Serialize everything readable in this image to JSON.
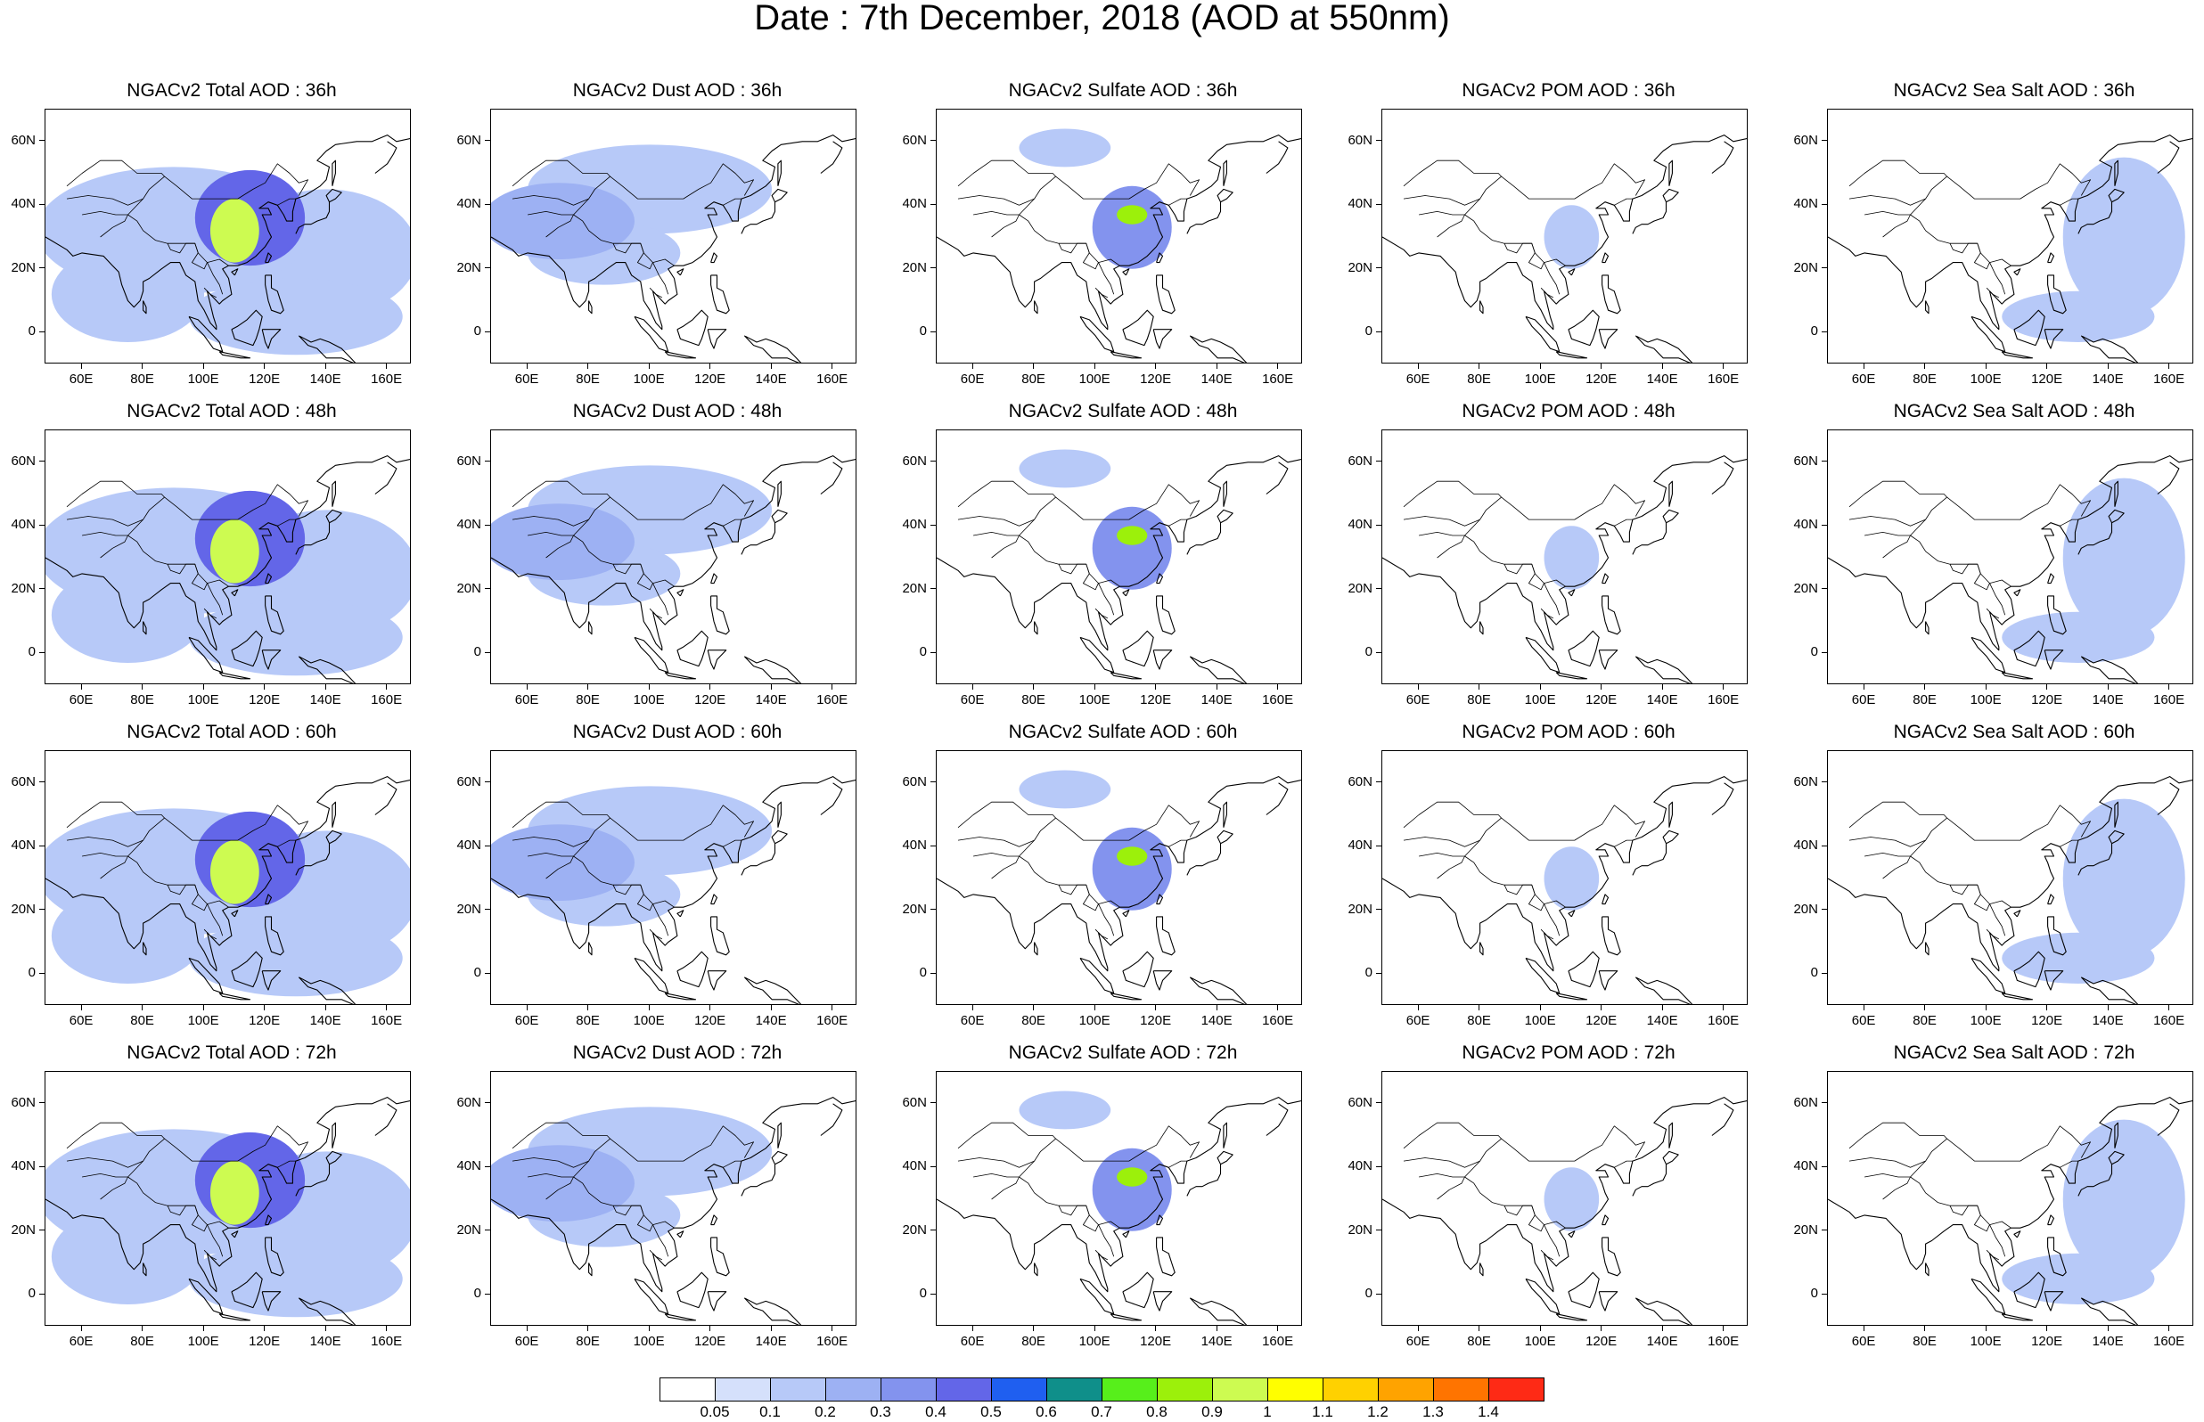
{
  "figure": {
    "title": "Date : 7th December, 2018 (AOD at 550nm)"
  },
  "panel_titles": [
    [
      "NGACv2 Total AOD : 36h",
      "NGACv2 Dust AOD : 36h",
      "NGACv2 Sulfate AOD : 36h",
      "NGACv2 POM AOD : 36h",
      "NGACv2 Sea Salt AOD : 36h"
    ],
    [
      "NGACv2 Total AOD : 48h",
      "NGACv2 Dust AOD : 48h",
      "NGACv2 Sulfate AOD : 48h",
      "NGACv2 POM AOD : 48h",
      "NGACv2 Sea Salt AOD : 48h"
    ],
    [
      "NGACv2 Total AOD : 60h",
      "NGACv2 Dust AOD : 60h",
      "NGACv2 Sulfate AOD : 60h",
      "NGACv2 POM AOD : 60h",
      "NGACv2 Sea Salt AOD : 60h"
    ],
    [
      "NGACv2 Total AOD : 72h",
      "NGACv2 Dust AOD : 72h",
      "NGACv2 Sulfate AOD : 72h",
      "NGACv2 POM AOD : 72h",
      "NGACv2 Sea Salt  AOD : 72h"
    ]
  ],
  "map": {
    "lon_range": [
      48,
      168
    ],
    "lat_range": [
      -10,
      70
    ],
    "lon_ticks": [
      60,
      80,
      100,
      120,
      140,
      160
    ],
    "lon_tick_labels": [
      "60E",
      "80E",
      "100E",
      "120E",
      "140E",
      "160E"
    ],
    "lat_ticks": [
      60,
      40,
      20,
      0
    ],
    "lat_tick_labels": [
      "60N",
      "40N",
      "20N",
      "0"
    ]
  },
  "colorbar": {
    "labels": [
      "0.05",
      "0.1",
      "0.2",
      "0.3",
      "0.4",
      "0.5",
      "0.6",
      "0.7",
      "0.8",
      "0.9",
      "1",
      "1.1",
      "1.2",
      "1.3",
      "1.4"
    ],
    "colors": [
      "#ffffff",
      "#d5e0fb",
      "#b7c9f8",
      "#9db1f3",
      "#8393ee",
      "#6366e8",
      "#1f5ff0",
      "#0f8f8a",
      "#57ef1b",
      "#9cf00b",
      "#cdfb51",
      "#fffe00",
      "#ffd100",
      "#ffa300",
      "#ff7400",
      "#fe2a15"
    ]
  },
  "chart_data": {
    "type": "heatmap",
    "title": "Date : 7th December, 2018 (AOD at 550nm)",
    "variable": "AOD at 550nm",
    "date": "7th December, 2018",
    "species": [
      "Total",
      "Dust",
      "Sulfate",
      "POM",
      "Sea Salt"
    ],
    "forecast_hours": [
      "36h",
      "48h",
      "60h",
      "72h"
    ],
    "color_levels": [
      0.05,
      0.1,
      0.2,
      0.3,
      0.4,
      0.5,
      0.6,
      0.7,
      0.8,
      0.9,
      1,
      1.1,
      1.2,
      1.3,
      1.4
    ],
    "features": {
      "Total": [
        {
          "lon": 110,
          "lat": 32,
          "rlon": 8,
          "rlat": 10,
          "v": 0.95
        },
        {
          "lon": 115,
          "lat": 36,
          "rlon": 18,
          "rlat": 15,
          "v": 0.4
        },
        {
          "lon": 90,
          "lat": 32,
          "rlon": 45,
          "rlat": 20,
          "v": 0.15
        },
        {
          "lon": 75,
          "lat": 12,
          "rlon": 25,
          "rlat": 15,
          "v": 0.12
        },
        {
          "lon": 140,
          "lat": 25,
          "rlon": 30,
          "rlat": 20,
          "v": 0.1
        },
        {
          "lon": 130,
          "lat": 5,
          "rlon": 35,
          "rlat": 12,
          "v": 0.12
        }
      ],
      "Dust": [
        {
          "lon": 70,
          "lat": 35,
          "rlon": 25,
          "rlat": 12,
          "v": 0.2
        },
        {
          "lon": 100,
          "lat": 45,
          "rlon": 40,
          "rlat": 14,
          "v": 0.1
        },
        {
          "lon": 85,
          "lat": 25,
          "rlon": 25,
          "rlat": 10,
          "v": 0.1
        }
      ],
      "Sulfate": [
        {
          "lon": 112,
          "lat": 33,
          "rlon": 13,
          "rlat": 13,
          "v": 0.35
        },
        {
          "lon": 112,
          "lat": 37,
          "rlon": 5,
          "rlat": 3,
          "v": 0.8
        },
        {
          "lon": 90,
          "lat": 58,
          "rlon": 15,
          "rlat": 6,
          "v": 0.1
        }
      ],
      "POM": [
        {
          "lon": 110,
          "lat": 30,
          "rlon": 9,
          "rlat": 10,
          "v": 0.1
        }
      ],
      "Sea Salt": [
        {
          "lon": 145,
          "lat": 30,
          "rlon": 20,
          "rlat": 25,
          "v": 0.12
        },
        {
          "lon": 130,
          "lat": 5,
          "rlon": 25,
          "rlat": 8,
          "v": 0.1
        }
      ]
    }
  }
}
